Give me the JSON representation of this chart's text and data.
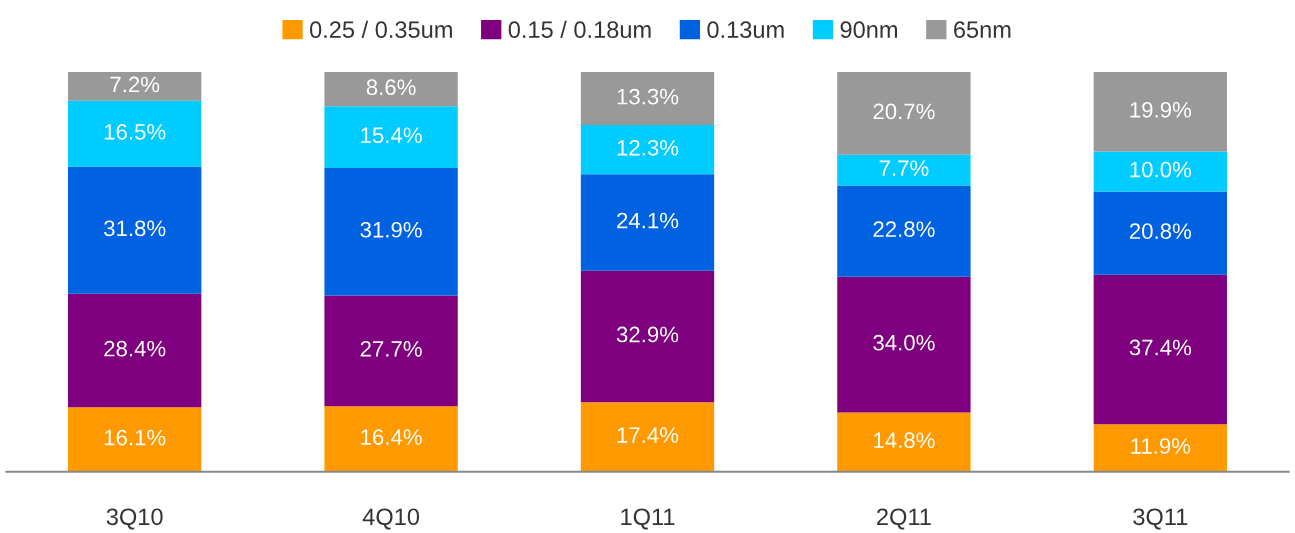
{
  "chart_data": {
    "type": "bar",
    "stacked": true,
    "legend": "top",
    "grid": false,
    "tick_labels": "x",
    "categories": [
      "3Q10",
      "4Q10",
      "1Q11",
      "2Q11",
      "3Q11"
    ],
    "series": [
      {
        "name": "0.25 / 0.35um",
        "color": "#ff9900",
        "values": [
          16.1,
          16.4,
          17.4,
          14.8,
          11.9
        ],
        "value_labels": [
          "16.1%",
          "16.4%",
          "17.4%",
          "14.8%",
          "11.9%"
        ]
      },
      {
        "name": "0.15 / 0.18um",
        "color": "#7f007f",
        "values": [
          28.4,
          27.7,
          32.9,
          34.0,
          37.4
        ],
        "value_labels": [
          "28.4%",
          "27.7%",
          "32.9%",
          "34.0%",
          "37.4%"
        ]
      },
      {
        "name": "0.13um",
        "color": "#0062e0",
        "values": [
          31.8,
          31.9,
          24.1,
          22.8,
          20.8
        ],
        "value_labels": [
          "31.8%",
          "31.9%",
          "24.1%",
          "22.8%",
          "20.8%"
        ]
      },
      {
        "name": "90nm",
        "color": "#00ccff",
        "values": [
          16.5,
          15.4,
          12.3,
          7.7,
          10.0
        ],
        "value_labels": [
          "16.5%",
          "15.4%",
          "12.3%",
          "7.7%",
          "10.0%"
        ]
      },
      {
        "name": "65nm",
        "color": "#999999",
        "values": [
          7.2,
          8.6,
          13.3,
          20.7,
          19.9
        ],
        "value_labels": [
          "7.2%",
          "8.6%",
          "13.3%",
          "20.7%",
          "19.9%"
        ]
      }
    ]
  }
}
